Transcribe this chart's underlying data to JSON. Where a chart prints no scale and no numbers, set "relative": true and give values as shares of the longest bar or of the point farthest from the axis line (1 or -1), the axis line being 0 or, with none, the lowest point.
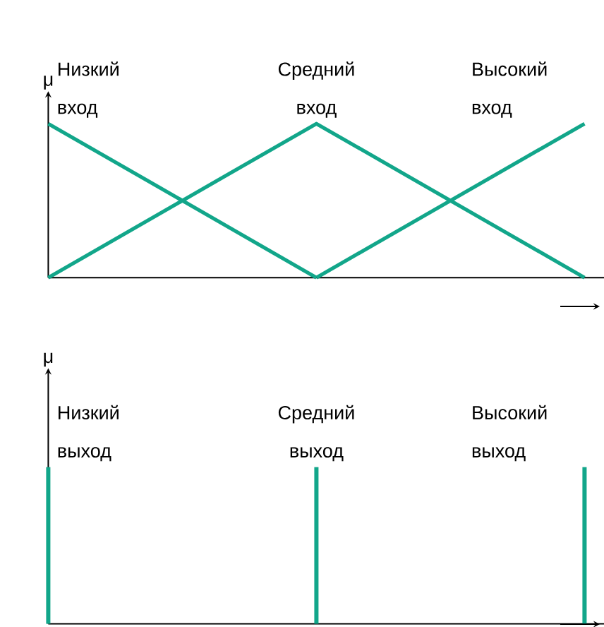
{
  "chart_data": [
    {
      "type": "line",
      "ylabel": "μ",
      "relative": true,
      "categories": [
        null,
        null,
        null
      ],
      "series": [
        {
          "name": "Низкий вход",
          "color": "#12a68a",
          "values": [
            1,
            0,
            null
          ]
        },
        {
          "name": "Средний вход",
          "color": "#12a68a",
          "values": [
            0,
            1,
            0
          ]
        },
        {
          "name": "Высокий вход",
          "color": "#12a68a",
          "values": [
            null,
            0,
            1
          ]
        }
      ]
    },
    {
      "type": "bar",
      "ylabel": "μ",
      "relative": true,
      "categories": [
        null,
        null,
        null
      ],
      "series": [
        {
          "name": "Низкий выход",
          "color": "#12a68a",
          "values": [
            1,
            null,
            null
          ]
        },
        {
          "name": "Средний выход",
          "color": "#12a68a",
          "values": [
            null,
            1,
            null
          ]
        },
        {
          "name": "Высокий выход",
          "color": "#12a68a",
          "values": [
            null,
            null,
            1
          ]
        }
      ]
    }
  ]
}
